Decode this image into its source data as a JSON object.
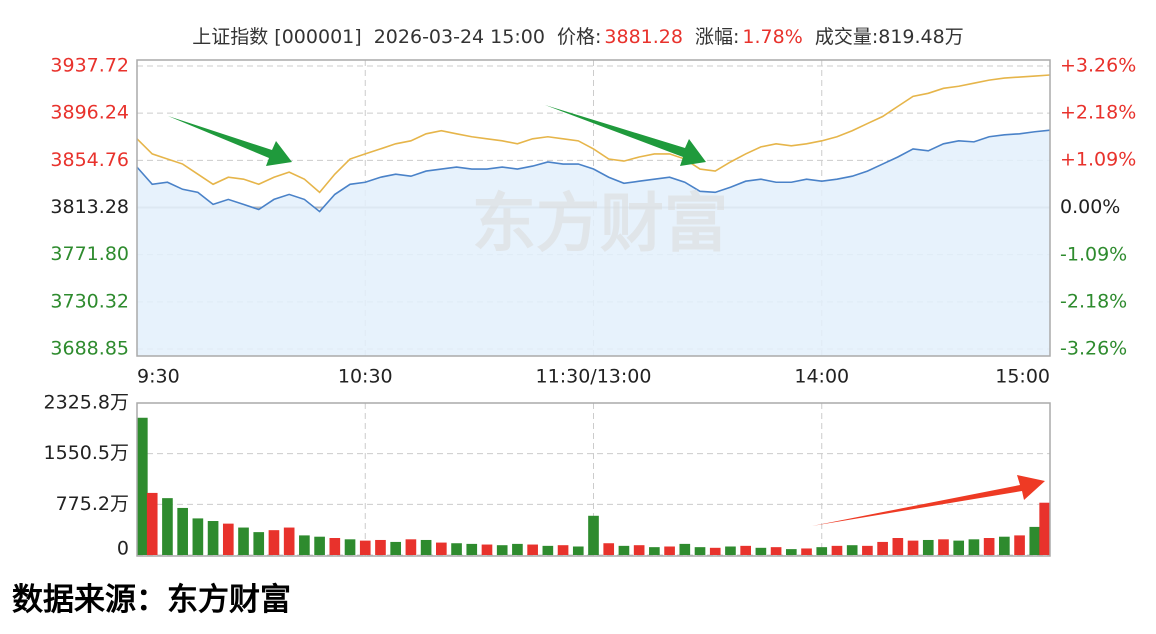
{
  "header": {
    "name": "上证指数 [000001]",
    "time": "2026-03-24 15:00",
    "price_label": "价格:",
    "price": "3881.28",
    "change_label": "涨幅:",
    "change": "1.78%",
    "volume": "成交量:819.48万"
  },
  "watermark": "东方财富",
  "footer": "数据来源：东方财富",
  "chart_data": [
    {
      "type": "line",
      "x": [
        0,
        4,
        8,
        12,
        16,
        20,
        24,
        28,
        32,
        36,
        40,
        44,
        48,
        52,
        56,
        60,
        64,
        68,
        72,
        76,
        80,
        84,
        88,
        92,
        96,
        100,
        104,
        108,
        112,
        116,
        120,
        124,
        128,
        132,
        136,
        140,
        144,
        148,
        152,
        156,
        160,
        164,
        168,
        172,
        176,
        180,
        184,
        188,
        192,
        196,
        200,
        204,
        208,
        212,
        216,
        220,
        224,
        228,
        232,
        236,
        240
      ],
      "series": [
        {
          "color": "#4a82c8",
          "fill": "#e3f0fb",
          "values": [
            3848.8,
            3833.7,
            3835.5,
            3829.3,
            3826.6,
            3816,
            3820.4,
            3816,
            3811.5,
            3820.4,
            3824.8,
            3820.4,
            3809.7,
            3824.8,
            3833.7,
            3835.5,
            3839.9,
            3842.6,
            3840.8,
            3845.3,
            3847.1,
            3848.8,
            3847.1,
            3847.1,
            3848.8,
            3847.1,
            3849.7,
            3853.3,
            3851.5,
            3851.5,
            3847.1,
            3839.9,
            3834.6,
            3836.4,
            3838.2,
            3839.9,
            3835.5,
            3827.5,
            3826.6,
            3831.1,
            3836.4,
            3838.2,
            3835.5,
            3835.5,
            3838.2,
            3836.4,
            3838.2,
            3840.8,
            3845.3,
            3851.5,
            3857.7,
            3864.8,
            3863.1,
            3869.3,
            3871.9,
            3871,
            3875.5,
            3877.2,
            3878.1,
            3879.9,
            3881.28
          ]
        },
        {
          "color": "#e6b54a",
          "values": [
            3873.7,
            3860.4,
            3855.9,
            3851.5,
            3842.6,
            3833.7,
            3839.9,
            3838.2,
            3833.7,
            3839.9,
            3844.4,
            3838.2,
            3826.6,
            3842.6,
            3855.9,
            3860.4,
            3864.8,
            3869.3,
            3871.9,
            3878.1,
            3880.8,
            3878.1,
            3875.5,
            3873.7,
            3871.9,
            3869.3,
            3873.7,
            3875.5,
            3873.7,
            3871.9,
            3864.8,
            3855.9,
            3854.1,
            3857.7,
            3860.4,
            3860.4,
            3855.9,
            3847.1,
            3845.3,
            3853.3,
            3860.4,
            3866.6,
            3869.3,
            3867.5,
            3869.3,
            3871.9,
            3875.5,
            3880.8,
            3887.1,
            3893.3,
            3902.2,
            3911,
            3913.7,
            3918.1,
            3919.9,
            3922.6,
            3925.3,
            3927.1,
            3928,
            3928.9,
            3929.8
          ]
        }
      ],
      "xlim": [
        0,
        240
      ],
      "xticks": [
        {
          "value": 0,
          "label": "9:30"
        },
        {
          "value": 60,
          "label": "10:30"
        },
        {
          "value": 120,
          "label": "11:30/13:00"
        },
        {
          "value": 180,
          "label": "14:00"
        },
        {
          "value": 240,
          "label": "15:00"
        }
      ],
      "ylim": [
        3688.85,
        3937.72
      ],
      "yticks": [
        3937.72,
        3896.24,
        3854.76,
        3813.28,
        {
          "value": 3771.8,
          "label": "3771.80"
        },
        3730.32,
        3688.85
      ],
      "y2lim": [
        -3.26,
        3.26
      ],
      "y2ticks": [
        {
          "value": 3.26,
          "label": "+3.26%"
        },
        {
          "value": 2.18,
          "label": "+2.18%"
        },
        {
          "value": 1.09,
          "label": "+1.09%"
        },
        {
          "value": 0,
          "label": "0.00%"
        },
        {
          "value": -1.09,
          "label": "-1.09%"
        },
        {
          "value": -2.18,
          "label": "-2.18%"
        },
        {
          "value": -3.26,
          "label": "-3.26%"
        }
      ],
      "grid": true
    },
    {
      "type": "bar",
      "x": [
        0,
        4,
        8,
        12,
        16,
        20,
        24,
        28,
        32,
        36,
        40,
        44,
        48,
        52,
        56,
        60,
        64,
        68,
        72,
        76,
        80,
        84,
        88,
        92,
        96,
        100,
        104,
        108,
        112,
        116,
        120,
        124,
        128,
        132,
        136,
        140,
        144,
        148,
        152,
        156,
        160,
        164,
        168,
        172,
        176,
        180,
        184,
        188,
        192,
        196,
        200,
        204,
        208,
        212,
        216,
        220,
        224,
        228,
        232,
        236,
        240
      ],
      "values": [
        2100,
        950,
        870,
        720,
        560,
        520,
        480,
        420,
        350,
        380,
        420,
        300,
        280,
        260,
        240,
        220,
        230,
        200,
        240,
        230,
        190,
        180,
        170,
        160,
        150,
        170,
        160,
        140,
        150,
        130,
        600,
        180,
        140,
        150,
        120,
        130,
        170,
        120,
        110,
        130,
        140,
        110,
        120,
        90,
        100,
        120,
        140,
        150,
        140,
        200,
        260,
        220,
        230,
        240,
        220,
        240,
        260,
        280,
        300,
        430,
        800
      ],
      "colors": [
        "#2e8b2e",
        "#e8322c",
        "#2e8b2e",
        "#2e8b2e",
        "#2e8b2e",
        "#2e8b2e",
        "#e8322c",
        "#2e8b2e",
        "#2e8b2e",
        "#e8322c",
        "#e8322c",
        "#2e8b2e",
        "#2e8b2e",
        "#e8322c",
        "#2e8b2e",
        "#e8322c",
        "#e8322c",
        "#2e8b2e",
        "#e8322c",
        "#2e8b2e",
        "#e8322c",
        "#2e8b2e",
        "#2e8b2e",
        "#e8322c",
        "#2e8b2e",
        "#2e8b2e",
        "#e8322c",
        "#2e8b2e",
        "#e8322c",
        "#2e8b2e",
        "#2e8b2e",
        "#e8322c",
        "#2e8b2e",
        "#e8322c",
        "#2e8b2e",
        "#e8322c",
        "#2e8b2e",
        "#2e8b2e",
        "#e8322c",
        "#2e8b2e",
        "#e8322c",
        "#2e8b2e",
        "#e8322c",
        "#2e8b2e",
        "#e8322c",
        "#2e8b2e",
        "#e8322c",
        "#2e8b2e",
        "#e8322c",
        "#e8322c",
        "#e8322c",
        "#e8322c",
        "#2e8b2e",
        "#e8322c",
        "#2e8b2e",
        "#2e8b2e",
        "#e8322c",
        "#2e8b2e",
        "#e8322c",
        "#2e8b2e",
        "#e8322c"
      ],
      "xlim": [
        0,
        240
      ],
      "xticks": [
        0,
        60,
        120,
        180,
        240
      ],
      "ylim": [
        0,
        2325.8
      ],
      "yticks": [
        {
          "value": 2325.8,
          "label": "2325.8万"
        },
        {
          "value": 1550.5,
          "label": "1550.5万"
        },
        {
          "value": 775.2,
          "label": "775.2万"
        },
        0
      ],
      "grid": true
    }
  ]
}
